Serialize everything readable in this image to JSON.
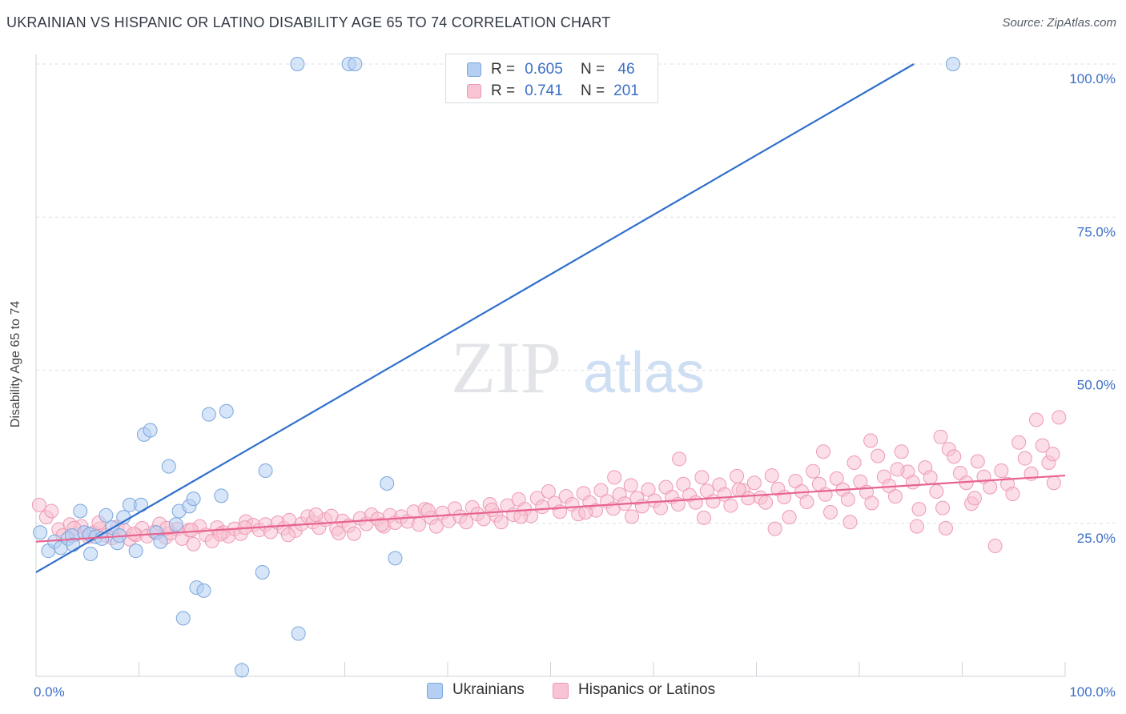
{
  "title": "UKRAINIAN VS HISPANIC OR LATINO DISABILITY AGE 65 TO 74 CORRELATION CHART",
  "source": "Source: ZipAtlas.com",
  "watermark": {
    "zip": "ZIP",
    "atlas": "atlas"
  },
  "legend": {
    "rows": [
      {
        "r_label": "R =",
        "r_value": "0.605",
        "n_label": "N =",
        "n_value": "46"
      },
      {
        "r_label": "R =",
        "r_value": "0.741",
        "n_label": "N =",
        "n_value": "201"
      }
    ]
  },
  "colors": {
    "blue_fill": "#b4cff2",
    "blue_stroke": "#7ba6dc",
    "blue_line": "#2f6fcc",
    "pink_fill": "#f8c3d3",
    "pink_stroke": "#ee9ab4",
    "pink_line": "#e8638f",
    "tick_label": "#3d6fc6",
    "grid": "#dcdfe4"
  },
  "chart_data": {
    "type": "scatter",
    "title": "UKRAINIAN VS HISPANIC OR LATINO DISABILITY AGE 65 TO 74 CORRELATION CHART",
    "xlabel": "",
    "ylabel": "Disability Age 65 to 74",
    "xlim": [
      0,
      100
    ],
    "ylim": [
      0,
      100
    ],
    "x_tick_labels": [
      "0.0%",
      "100.0%"
    ],
    "y_ticks": [
      25,
      50,
      75,
      100
    ],
    "y_tick_labels": [
      "25.0%",
      "50.0%",
      "75.0%",
      "100.0%"
    ],
    "grid": true,
    "legend_position": "bottom",
    "series": [
      {
        "name": "Ukrainians",
        "r": 0.605,
        "n": 46,
        "trend": {
          "x": [
            0,
            85.3
          ],
          "y": [
            17.0,
            100.0
          ]
        },
        "points": [
          [
            0.4,
            23.5
          ],
          [
            1.2,
            20.5
          ],
          [
            1.8,
            22
          ],
          [
            2.4,
            21
          ],
          [
            3.1,
            22.5
          ],
          [
            3.5,
            23
          ],
          [
            3.6,
            21.5
          ],
          [
            4.3,
            27
          ],
          [
            4.7,
            23.5
          ],
          [
            5.2,
            23.2
          ],
          [
            5.3,
            20
          ],
          [
            5.8,
            22.8
          ],
          [
            6.4,
            22.5
          ],
          [
            6.8,
            26.3
          ],
          [
            7.4,
            24.3
          ],
          [
            7.9,
            21.8
          ],
          [
            8.1,
            23
          ],
          [
            8.5,
            26
          ],
          [
            9.1,
            28
          ],
          [
            9.7,
            20.5
          ],
          [
            10.2,
            28
          ],
          [
            10.5,
            39.5
          ],
          [
            11.1,
            40.2
          ],
          [
            11.7,
            23.5
          ],
          [
            12.1,
            22
          ],
          [
            12.9,
            34.3
          ],
          [
            13.6,
            24.8
          ],
          [
            13.9,
            27
          ],
          [
            14.3,
            9.5
          ],
          [
            14.9,
            27.8
          ],
          [
            15.3,
            29
          ],
          [
            15.6,
            14.5
          ],
          [
            16.3,
            14
          ],
          [
            16.8,
            42.8
          ],
          [
            18.0,
            29.5
          ],
          [
            18.5,
            43.3
          ],
          [
            20.0,
            1.0
          ],
          [
            22.0,
            17
          ],
          [
            22.3,
            33.6
          ],
          [
            25.4,
            100
          ],
          [
            25.5,
            7
          ],
          [
            30.4,
            100
          ],
          [
            31,
            100
          ],
          [
            34.1,
            31.5
          ],
          [
            34.9,
            19.3
          ],
          [
            89.1,
            100
          ]
        ]
      },
      {
        "name": "Hispanics or Latinos",
        "r": 0.741,
        "n": 201,
        "trend": {
          "x": [
            0,
            100
          ],
          "y": [
            22.0,
            32.8
          ]
        },
        "points": [
          [
            0.3,
            28
          ],
          [
            1,
            26
          ],
          [
            1.5,
            27
          ],
          [
            2.2,
            24
          ],
          [
            2.6,
            23
          ],
          [
            3.3,
            24.8
          ],
          [
            3.9,
            23.2
          ],
          [
            4.4,
            24.5
          ],
          [
            5.1,
            22.8
          ],
          [
            5.6,
            23.5
          ],
          [
            6.2,
            24.1
          ],
          [
            6.8,
            23
          ],
          [
            7.4,
            22.6
          ],
          [
            7.9,
            24.4
          ],
          [
            8.6,
            23.8
          ],
          [
            9.1,
            22.4
          ],
          [
            9.7,
            23.1
          ],
          [
            10.3,
            24.2
          ],
          [
            10.8,
            22.9
          ],
          [
            11.5,
            23.6
          ],
          [
            12,
            24.9
          ],
          [
            12.6,
            22.7
          ],
          [
            13.1,
            23.4
          ],
          [
            13.7,
            24.1
          ],
          [
            14.2,
            22.5
          ],
          [
            14.9,
            23.9
          ],
          [
            15.3,
            21.6
          ],
          [
            15.9,
            24.5
          ],
          [
            16.5,
            23.1
          ],
          [
            17.1,
            22.1
          ],
          [
            17.6,
            24.3
          ],
          [
            18.2,
            23.5
          ],
          [
            18.7,
            22.9
          ],
          [
            19.3,
            24.1
          ],
          [
            19.9,
            23.3
          ],
          [
            20.4,
            25.3
          ],
          [
            21.1,
            24.7
          ],
          [
            21.7,
            23.9
          ],
          [
            22.3,
            24.8
          ],
          [
            22.8,
            23.6
          ],
          [
            23.5,
            25.1
          ],
          [
            24.1,
            24.2
          ],
          [
            24.6,
            25.5
          ],
          [
            25.2,
            23.8
          ],
          [
            25.8,
            24.9
          ],
          [
            26.4,
            26.1
          ],
          [
            26.9,
            25.2
          ],
          [
            27.5,
            24.3
          ],
          [
            28.1,
            25.6
          ],
          [
            28.7,
            26.2
          ],
          [
            29.2,
            24.1
          ],
          [
            29.8,
            25.4
          ],
          [
            30.4,
            24.6
          ],
          [
            30.9,
            23.3
          ],
          [
            31.5,
            25.8
          ],
          [
            32.1,
            24.9
          ],
          [
            32.6,
            26.4
          ],
          [
            33.2,
            25.7
          ],
          [
            33.8,
            24.5
          ],
          [
            34.4,
            26.3
          ],
          [
            34.9,
            25.1
          ],
          [
            35.5,
            26.1
          ],
          [
            36.1,
            25.3
          ],
          [
            36.7,
            26.9
          ],
          [
            37.2,
            24.8
          ],
          [
            37.8,
            27.3
          ],
          [
            38.4,
            25.9
          ],
          [
            38.9,
            24.5
          ],
          [
            39.5,
            26.7
          ],
          [
            40.1,
            25.4
          ],
          [
            40.7,
            27.4
          ],
          [
            41.2,
            26.1
          ],
          [
            41.8,
            25.2
          ],
          [
            42.4,
            27.6
          ],
          [
            42.9,
            26.5
          ],
          [
            43.5,
            25.7
          ],
          [
            44.1,
            28.1
          ],
          [
            44.7,
            26.3
          ],
          [
            45.2,
            25.2
          ],
          [
            45.8,
            27.9
          ],
          [
            46.4,
            26.4
          ],
          [
            46.9,
            28.9
          ],
          [
            47.5,
            27.3
          ],
          [
            48.1,
            26.2
          ],
          [
            48.7,
            29.1
          ],
          [
            49.2,
            27.7
          ],
          [
            49.8,
            30.2
          ],
          [
            50.4,
            28.3
          ],
          [
            50.9,
            26.9
          ],
          [
            51.5,
            29.4
          ],
          [
            52.1,
            28.1
          ],
          [
            52.7,
            26.5
          ],
          [
            53.2,
            29.9
          ],
          [
            53.8,
            28.4
          ],
          [
            54.4,
            27.1
          ],
          [
            54.9,
            30.4
          ],
          [
            55.5,
            28.6
          ],
          [
            56.1,
            27.4
          ],
          [
            56.7,
            29.7
          ],
          [
            57.2,
            28.2
          ],
          [
            57.8,
            31.2
          ],
          [
            58.4,
            29.1
          ],
          [
            58.9,
            27.8
          ],
          [
            59.5,
            30.5
          ],
          [
            60.1,
            28.7
          ],
          [
            60.7,
            27.5
          ],
          [
            61.2,
            30.9
          ],
          [
            61.8,
            29.3
          ],
          [
            62.4,
            28.1
          ],
          [
            62.9,
            31.4
          ],
          [
            63.5,
            29.6
          ],
          [
            64.1,
            28.4
          ],
          [
            64.7,
            32.5
          ],
          [
            65.2,
            30.3
          ],
          [
            65.8,
            28.6
          ],
          [
            66.4,
            31.3
          ],
          [
            66.9,
            29.7
          ],
          [
            67.5,
            27.9
          ],
          [
            68.1,
            32.7
          ],
          [
            68.7,
            30.4
          ],
          [
            69.2,
            29.1
          ],
          [
            69.8,
            31.6
          ],
          [
            70.4,
            29.2
          ],
          [
            70.9,
            28.4
          ],
          [
            71.5,
            32.8
          ],
          [
            72.1,
            30.6
          ],
          [
            72.7,
            29.3
          ],
          [
            73.2,
            26
          ],
          [
            73.8,
            31.9
          ],
          [
            74.4,
            30.2
          ],
          [
            74.9,
            28.5
          ],
          [
            75.5,
            33.5
          ],
          [
            76.1,
            31.4
          ],
          [
            76.7,
            29.7
          ],
          [
            77.2,
            26.8
          ],
          [
            77.8,
            32.3
          ],
          [
            78.4,
            30.5
          ],
          [
            78.9,
            28.9
          ],
          [
            79.5,
            34.9
          ],
          [
            80.1,
            31.8
          ],
          [
            80.7,
            30.1
          ],
          [
            81.2,
            28.3
          ],
          [
            81.8,
            36
          ],
          [
            82.4,
            32.6
          ],
          [
            82.9,
            31.1
          ],
          [
            83.5,
            29.4
          ],
          [
            84.1,
            36.7
          ],
          [
            84.7,
            33.4
          ],
          [
            85.2,
            31.7
          ],
          [
            85.8,
            27.3
          ],
          [
            86.4,
            34.1
          ],
          [
            86.9,
            32.5
          ],
          [
            87.5,
            30.2
          ],
          [
            88.1,
            27.5
          ],
          [
            88.7,
            37.1
          ],
          [
            89.2,
            35.9
          ],
          [
            89.8,
            33.2
          ],
          [
            90.4,
            31.6
          ],
          [
            90.9,
            28.2
          ],
          [
            91.5,
            35.1
          ],
          [
            92.1,
            32.6
          ],
          [
            92.7,
            30.9
          ],
          [
            93.2,
            21.3
          ],
          [
            93.8,
            33.6
          ],
          [
            94.4,
            31.4
          ],
          [
            94.9,
            29.8
          ],
          [
            95.5,
            38.2
          ],
          [
            96.1,
            35.6
          ],
          [
            96.7,
            33.1
          ],
          [
            97.2,
            41.9
          ],
          [
            97.8,
            37.7
          ],
          [
            98.4,
            34.9
          ],
          [
            98.9,
            31.6
          ],
          [
            99.4,
            42.3
          ],
          [
            98.8,
            36.3
          ],
          [
            56.2,
            32.5
          ],
          [
            62.5,
            35.5
          ],
          [
            68.3,
            30.5
          ],
          [
            76.5,
            36.7
          ],
          [
            81.1,
            38.5
          ],
          [
            87.9,
            39.1
          ],
          [
            83.7,
            33.8
          ],
          [
            91.2,
            29.1
          ],
          [
            64.9,
            25.9
          ],
          [
            71.8,
            24.1
          ],
          [
            79.1,
            25.2
          ],
          [
            85.6,
            24.5
          ],
          [
            88.4,
            24.2
          ],
          [
            57.9,
            26.1
          ],
          [
            53.4,
            26.8
          ],
          [
            47.1,
            26.1
          ],
          [
            44.3,
            27.2
          ],
          [
            38.1,
            27.1
          ],
          [
            33.6,
            24.8
          ],
          [
            29.4,
            23.4
          ],
          [
            27.2,
            26.4
          ],
          [
            24.5,
            23.1
          ],
          [
            20.3,
            24.3
          ],
          [
            17.9,
            23.2
          ],
          [
            15.1,
            23.9
          ],
          [
            12.7,
            24.2
          ],
          [
            9.5,
            23.3
          ],
          [
            6.1,
            25.1
          ],
          [
            3.7,
            24.2
          ]
        ]
      }
    ]
  },
  "bottom_legend": [
    {
      "label": "Ukrainians"
    },
    {
      "label": "Hispanics or Latinos"
    }
  ]
}
